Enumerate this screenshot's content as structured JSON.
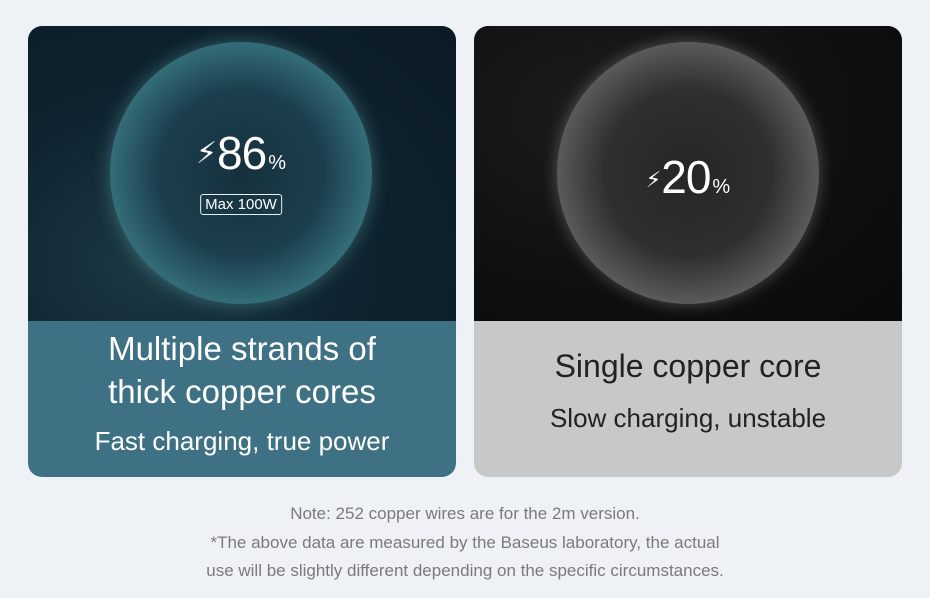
{
  "left_card": {
    "bolt_icon": "double-lightning-bolt",
    "value": "86",
    "unit": "%",
    "badge": "Max 100W",
    "headline_line1": "Multiple strands of",
    "headline_line2": "thick copper cores",
    "subtitle": "Fast charging, true power",
    "panel_color": "#3d7183"
  },
  "right_card": {
    "bolt_icon": "lightning-bolt",
    "value": "20",
    "unit": "%",
    "headline": "Single copper core",
    "subtitle": "Slow charging, unstable",
    "panel_color": "#c8c8c8"
  },
  "notes": [
    "Note: 252 copper wires are for the 2m version.",
    "*The above data are measured by the Baseus laboratory, the actual",
    "use will be slightly different depending on the specific circumstances."
  ]
}
